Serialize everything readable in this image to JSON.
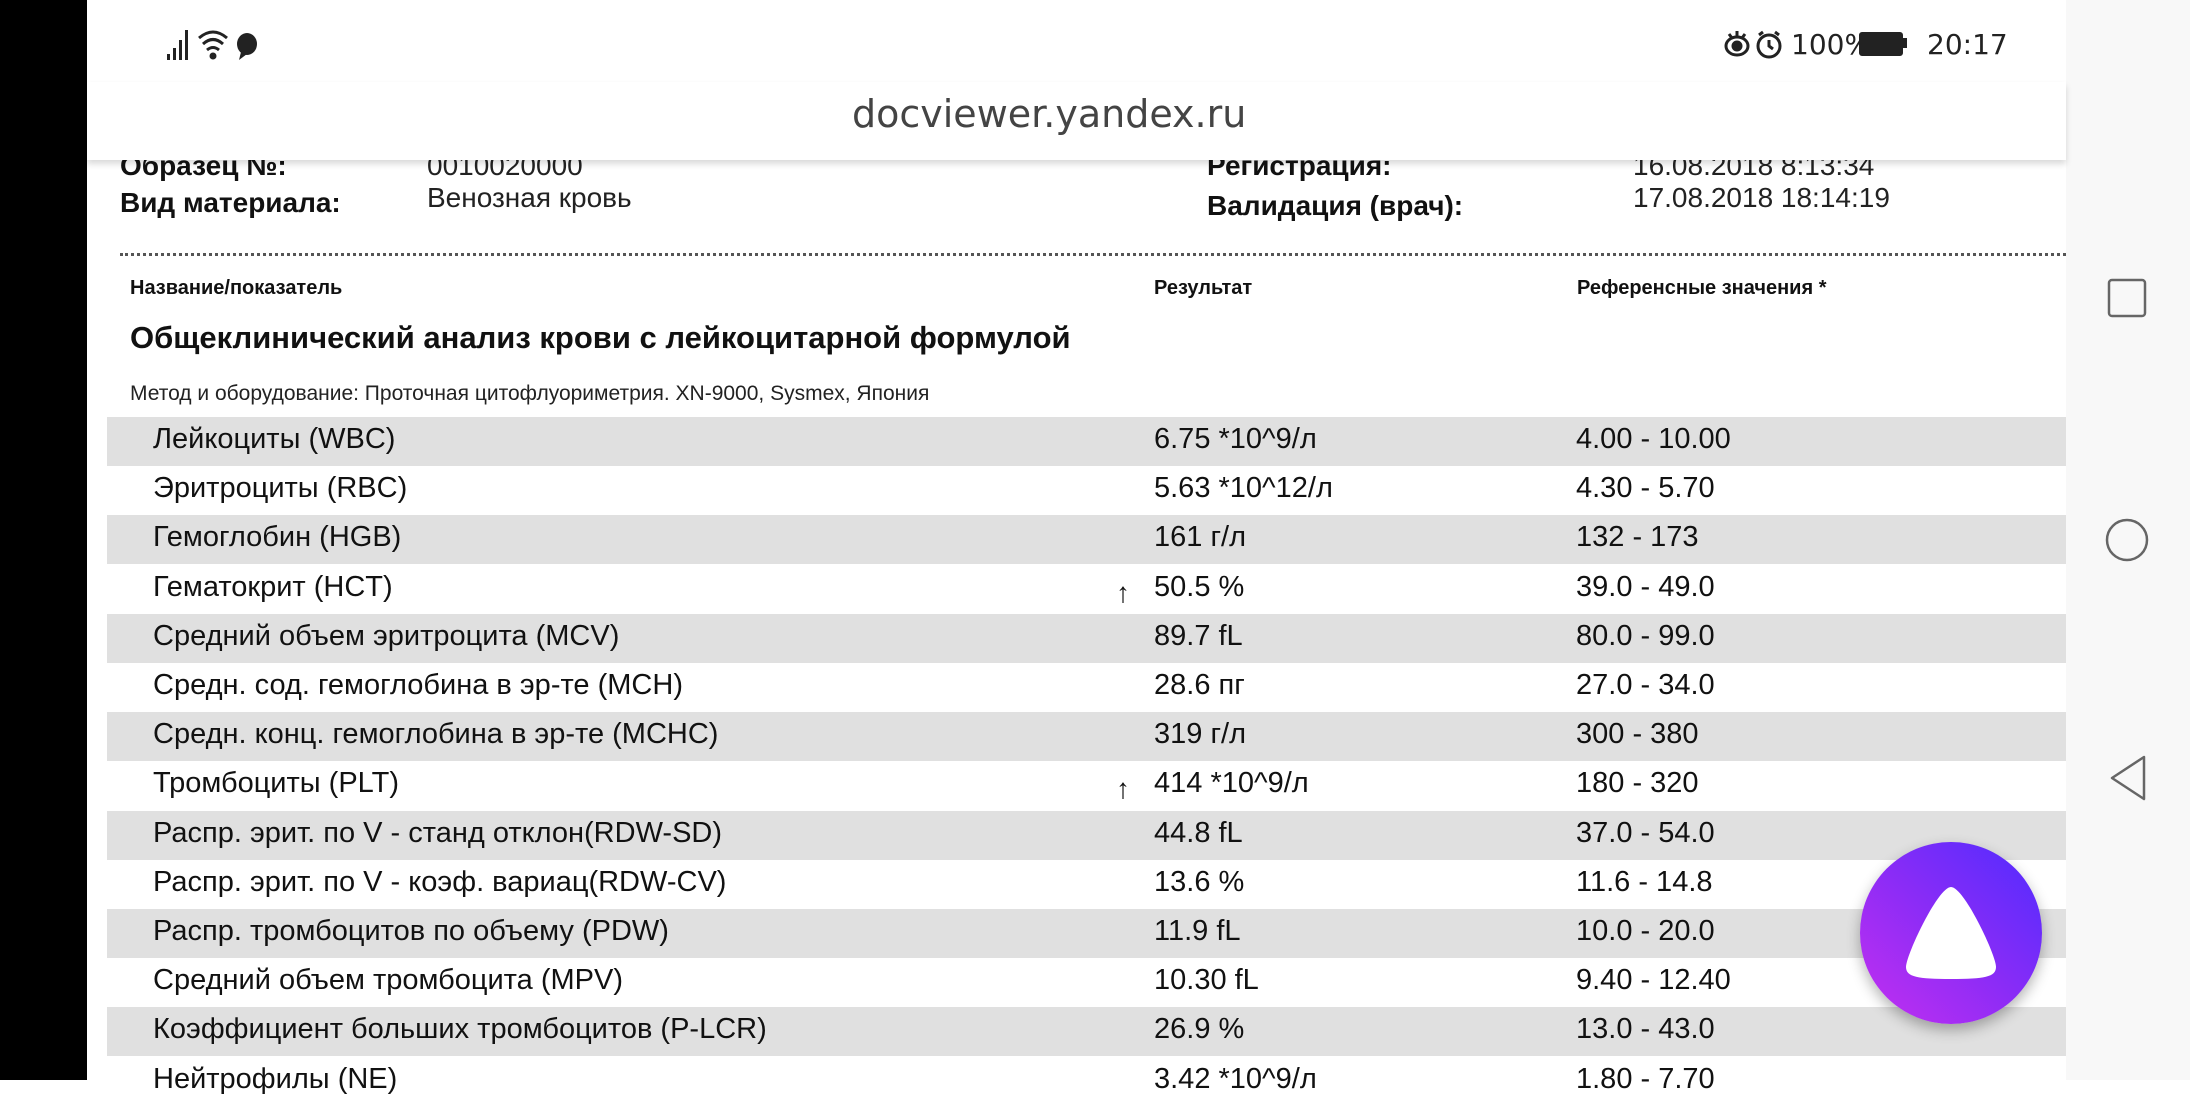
{
  "status_bar": {
    "left_icons": [
      "signal-icon",
      "wifi-icon",
      "chat-bubble-icon"
    ],
    "right_icons": [
      "eye-comfort-icon",
      "alarm-icon"
    ],
    "battery": "100%",
    "time": "20:17"
  },
  "browser": {
    "url": "docviewer.yandex.ru"
  },
  "document": {
    "hidden_row": {
      "label": "Образец №:",
      "value": "0010020000",
      "label2": "Регистрация:",
      "value2": "16.08.2018 8:13:34"
    },
    "material_label": "Вид материала:",
    "material_value": "Венозная кровь",
    "validation_label": "Валидация (врач):",
    "validation_value": "17.08.2018  18:14:19",
    "columns": {
      "name": "Название/показатель",
      "result": "Результат",
      "reference": "Референсные значения *"
    },
    "section_title": "Общеклинический анализ крови с лейкоцитарной формулой",
    "method": "Метод и оборудование:  Проточная цитофлуориметрия. XN-9000, Sysmex, Япония",
    "high_marker": "↑",
    "rows": [
      {
        "name": "Лейкоциты (WBC)",
        "result": "6.75 *10^9/л",
        "reference": "4.00 - 10.00",
        "high": false
      },
      {
        "name": "Эритроциты (RBC)",
        "result": "5.63 *10^12/л",
        "reference": "4.30 - 5.70",
        "high": false
      },
      {
        "name": "Гемоглобин (HGB)",
        "result": "161 г/л",
        "reference": "132 - 173",
        "high": false
      },
      {
        "name": "Гематокрит (HCT)",
        "result": "50.5 %",
        "reference": "39.0 - 49.0",
        "high": true
      },
      {
        "name": "Средний объем эритроцита (MCV)",
        "result": "89.7 fL",
        "reference": "80.0 - 99.0",
        "high": false
      },
      {
        "name": "Средн. сод. гемоглобина в эр-те (MCH)",
        "result": "28.6 пг",
        "reference": "27.0 - 34.0",
        "high": false
      },
      {
        "name": "Средн. конц. гемоглобина в эр-те (MCHC)",
        "result": "319 г/л",
        "reference": "300 - 380",
        "high": false
      },
      {
        "name": "Тромбоциты (PLT)",
        "result": "414 *10^9/л",
        "reference": "180 - 320",
        "high": true
      },
      {
        "name": "Распр. эрит. по V - станд отклон(RDW-SD)",
        "result": "44.8 fL",
        "reference": "37.0 - 54.0",
        "high": false
      },
      {
        "name": "Распр. эрит. по V - коэф. вариац(RDW-CV)",
        "result": "13.6 %",
        "reference": "11.6 - 14.8",
        "high": false
      },
      {
        "name": "Распр. тромбоцитов по объему (PDW)",
        "result": "11.9 fL",
        "reference": "10.0 - 20.0",
        "high": false
      },
      {
        "name": "Средний объем тромбоцита (MPV)",
        "result": "10.30 fL",
        "reference": "9.40 - 12.40",
        "high": false
      },
      {
        "name": "Коэффициент больших тромбоцитов (P-LCR)",
        "result": "26.9 %",
        "reference": "13.0 - 43.0",
        "high": false
      },
      {
        "name": "Нейтрофилы (NE)",
        "result": "3.42 *10^9/л",
        "reference": "1.80 - 7.70",
        "high": false
      }
    ]
  },
  "nav_bar": {
    "buttons": [
      "recents-square-icon",
      "home-circle-icon",
      "back-triangle-icon"
    ]
  },
  "assistant": {
    "icon": "alice-assistant-icon",
    "colors": [
      "#4f2bff",
      "#c52ff0"
    ]
  }
}
